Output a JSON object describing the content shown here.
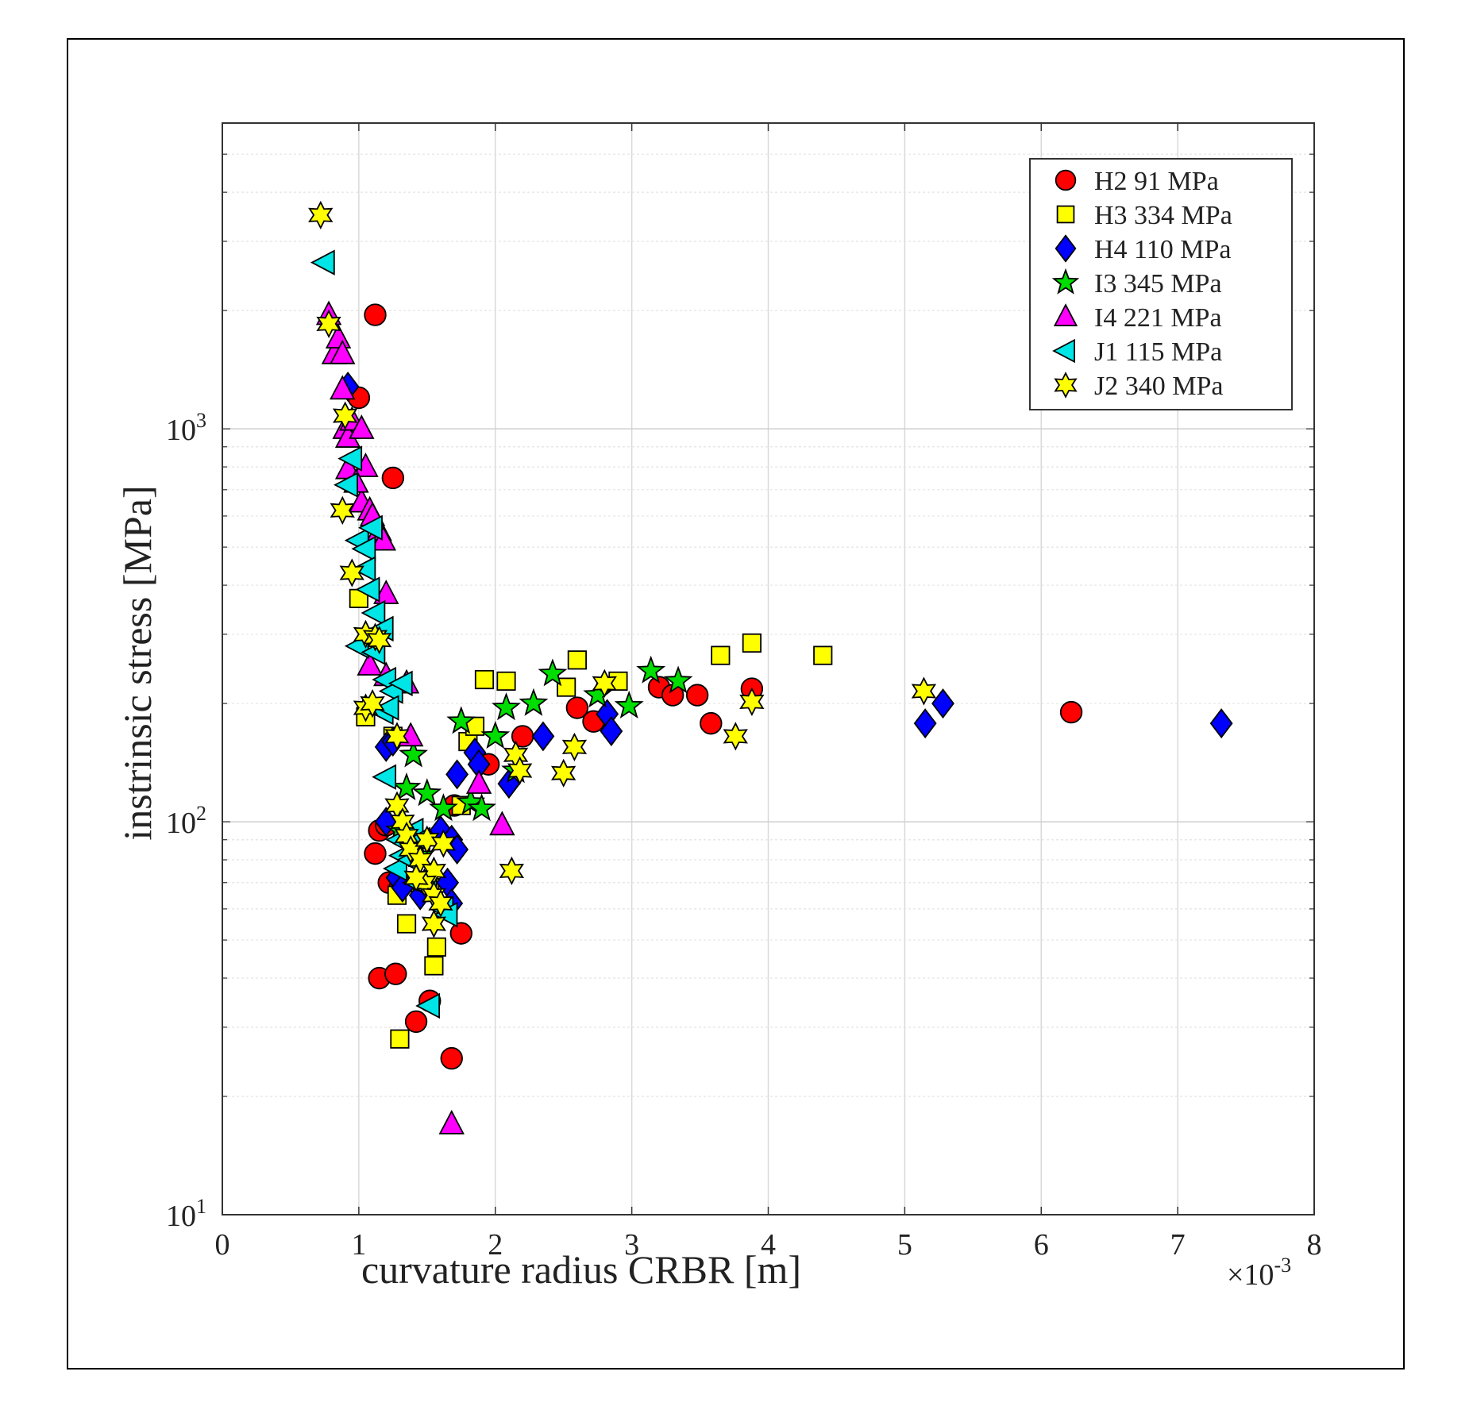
{
  "chart_data": {
    "type": "scatter",
    "xlabel": "curvature radius CRBR [m]",
    "ylabel": "instrinsic stress [MPa]",
    "x_multiplier_label": "×10",
    "x_multiplier_exponent": "-3",
    "xlim": [
      0,
      8
    ],
    "ylim": [
      10,
      6000
    ],
    "y_scale": "log",
    "x_ticks": [
      0,
      1,
      2,
      3,
      4,
      5,
      6,
      7,
      8
    ],
    "x_tick_labels": [
      "0",
      "1",
      "2",
      "3",
      "4",
      "5",
      "6",
      "7",
      "8"
    ],
    "y_ticks": [
      10,
      100,
      1000
    ],
    "y_tick_bases": [
      "10",
      "10",
      "10"
    ],
    "y_tick_exponents": [
      "1",
      "2",
      "3"
    ],
    "grid": true,
    "legend_position": "top-right",
    "series": [
      {
        "name": "H2  91 MPa",
        "marker": "circle",
        "color": "#ff0000",
        "points": [
          [
            1.12,
            1950
          ],
          [
            1.0,
            1200
          ],
          [
            1.25,
            750
          ],
          [
            1.15,
            95
          ],
          [
            1.2,
            98
          ],
          [
            1.12,
            83
          ],
          [
            1.22,
            70
          ],
          [
            1.3,
            68
          ],
          [
            1.15,
            40
          ],
          [
            1.27,
            41
          ],
          [
            1.42,
            31
          ],
          [
            1.52,
            35
          ],
          [
            1.68,
            25
          ],
          [
            1.75,
            52
          ],
          [
            1.7,
            110
          ],
          [
            1.95,
            140
          ],
          [
            2.2,
            165
          ],
          [
            2.6,
            195
          ],
          [
            2.72,
            180
          ],
          [
            3.2,
            220
          ],
          [
            3.3,
            210
          ],
          [
            3.48,
            210
          ],
          [
            3.58,
            178
          ],
          [
            3.88,
            218
          ],
          [
            6.22,
            190
          ]
        ]
      },
      {
        "name": "H3 334 MPa",
        "marker": "square",
        "color": "#ffff00",
        "points": [
          [
            1.3,
            28
          ],
          [
            1.35,
            55
          ],
          [
            1.55,
            43
          ],
          [
            1.57,
            48
          ],
          [
            1.28,
            65
          ],
          [
            1.45,
            70
          ],
          [
            1.52,
            68
          ],
          [
            1.05,
            185
          ],
          [
            1.25,
            165
          ],
          [
            1.0,
            370
          ],
          [
            1.8,
            160
          ],
          [
            1.85,
            175
          ],
          [
            1.92,
            230
          ],
          [
            2.08,
            228
          ],
          [
            2.52,
            220
          ],
          [
            2.6,
            258
          ],
          [
            2.9,
            228
          ],
          [
            3.65,
            265
          ],
          [
            3.88,
            285
          ],
          [
            4.4,
            265
          ],
          [
            1.75,
            110
          ]
        ]
      },
      {
        "name": "H4 110 MPa",
        "marker": "diamond",
        "color": "#0000ff",
        "points": [
          [
            0.92,
            1280
          ],
          [
            1.2,
            155
          ],
          [
            1.25,
            160
          ],
          [
            1.2,
            100
          ],
          [
            1.28,
            72
          ],
          [
            1.32,
            68
          ],
          [
            1.45,
            65
          ],
          [
            1.6,
            95
          ],
          [
            1.68,
            90
          ],
          [
            1.72,
            85
          ],
          [
            1.72,
            132
          ],
          [
            1.65,
            70
          ],
          [
            1.68,
            62
          ],
          [
            1.85,
            150
          ],
          [
            1.88,
            140
          ],
          [
            2.1,
            125
          ],
          [
            2.35,
            165
          ],
          [
            2.82,
            188
          ],
          [
            2.85,
            170
          ],
          [
            5.15,
            178
          ],
          [
            5.28,
            200
          ],
          [
            7.32,
            178
          ]
        ]
      },
      {
        "name": "I3  345 MPa",
        "marker": "star5",
        "color": "#00dd00",
        "points": [
          [
            1.35,
            122
          ],
          [
            1.4,
            148
          ],
          [
            1.5,
            118
          ],
          [
            1.62,
            108
          ],
          [
            1.75,
            180
          ],
          [
            1.82,
            112
          ],
          [
            1.9,
            108
          ],
          [
            2.0,
            165
          ],
          [
            2.08,
            195
          ],
          [
            2.15,
            135
          ],
          [
            2.28,
            200
          ],
          [
            2.42,
            238
          ],
          [
            2.75,
            210
          ],
          [
            2.98,
            197
          ],
          [
            3.14,
            242
          ],
          [
            3.34,
            228
          ],
          [
            1.3,
            95
          ],
          [
            1.45,
            82
          ]
        ]
      },
      {
        "name": "I4  221 MPa",
        "marker": "triangle-up",
        "color": "#ff00ff",
        "points": [
          [
            0.78,
            1950
          ],
          [
            0.82,
            1550
          ],
          [
            0.85,
            1700
          ],
          [
            0.88,
            1550
          ],
          [
            0.88,
            1260
          ],
          [
            0.9,
            1000
          ],
          [
            0.92,
            950
          ],
          [
            0.95,
            1050
          ],
          [
            1.02,
            1000
          ],
          [
            1.05,
            800
          ],
          [
            1.02,
            650
          ],
          [
            1.08,
            620
          ],
          [
            1.1,
            600
          ],
          [
            1.15,
            550
          ],
          [
            1.18,
            520
          ],
          [
            0.92,
            790
          ],
          [
            0.98,
            730
          ],
          [
            1.2,
            380
          ],
          [
            1.08,
            250
          ],
          [
            1.2,
            235
          ],
          [
            1.35,
            225
          ],
          [
            1.38,
            165
          ],
          [
            1.88,
            125
          ],
          [
            2.05,
            98
          ],
          [
            1.68,
            17
          ]
        ]
      },
      {
        "name": "J1 115 MPa",
        "marker": "triangle-left",
        "color": "#00e5e5",
        "points": [
          [
            0.75,
            2650
          ],
          [
            0.95,
            840
          ],
          [
            0.92,
            720
          ],
          [
            1.0,
            520
          ],
          [
            1.05,
            495
          ],
          [
            1.1,
            560
          ],
          [
            1.05,
            440
          ],
          [
            1.08,
            390
          ],
          [
            1.12,
            340
          ],
          [
            1.18,
            310
          ],
          [
            1.0,
            280
          ],
          [
            1.12,
            270
          ],
          [
            1.2,
            230
          ],
          [
            1.25,
            215
          ],
          [
            1.32,
            225
          ],
          [
            1.18,
            190
          ],
          [
            1.22,
            195
          ],
          [
            1.2,
            130
          ],
          [
            1.3,
            90
          ],
          [
            1.35,
            88
          ],
          [
            1.4,
            95
          ],
          [
            1.45,
            90
          ],
          [
            1.32,
            82
          ],
          [
            1.28,
            76
          ],
          [
            1.38,
            80
          ],
          [
            1.42,
            70
          ],
          [
            1.5,
            68
          ],
          [
            1.62,
            60
          ],
          [
            1.65,
            58
          ],
          [
            1.52,
            34
          ]
        ]
      },
      {
        "name": "J2 340 MPa",
        "marker": "star6",
        "color": "#ffff00",
        "points": [
          [
            0.72,
            3500
          ],
          [
            0.78,
            1850
          ],
          [
            0.9,
            1080
          ],
          [
            0.88,
            620
          ],
          [
            0.95,
            430
          ],
          [
            1.05,
            300
          ],
          [
            1.12,
            295
          ],
          [
            1.15,
            290
          ],
          [
            1.05,
            195
          ],
          [
            1.1,
            200
          ],
          [
            1.28,
            165
          ],
          [
            1.28,
            110
          ],
          [
            1.32,
            100
          ],
          [
            1.35,
            92
          ],
          [
            1.38,
            85
          ],
          [
            1.45,
            80
          ],
          [
            1.55,
            75
          ],
          [
            1.5,
            90
          ],
          [
            1.62,
            88
          ],
          [
            1.48,
            70
          ],
          [
            1.42,
            72
          ],
          [
            1.55,
            65
          ],
          [
            1.6,
            62
          ],
          [
            1.55,
            55
          ],
          [
            2.12,
            75
          ],
          [
            2.15,
            148
          ],
          [
            2.18,
            135
          ],
          [
            2.5,
            133
          ],
          [
            2.58,
            155
          ],
          [
            2.8,
            225
          ],
          [
            3.76,
            165
          ],
          [
            3.88,
            202
          ],
          [
            5.14,
            215
          ]
        ]
      }
    ]
  }
}
